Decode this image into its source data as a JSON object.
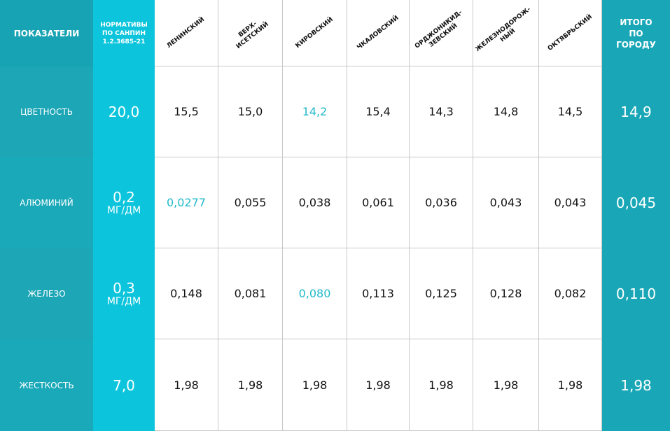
{
  "header": {
    "label": "ПОКАЗАТЕЛИ",
    "norm": [
      "НОРМАТИВЫ",
      "ПО САНПИН",
      "1.2.3685-21"
    ],
    "districts": [
      [
        "ЛЕНИНСКИЙ"
      ],
      [
        "ВЕРХ-",
        "ИСЕТСКИЙ"
      ],
      [
        "КИРОВСКИЙ"
      ],
      [
        "ЧКАЛОВСКИЙ"
      ],
      [
        "ОРДЖОНИКИД-",
        "ЗЕВСКИЙ"
      ],
      [
        "ЖЕЛЕЗНОДОРОЖ-",
        "НЫЙ"
      ],
      [
        "ОКТЯБРЬСКИЙ"
      ]
    ],
    "total": [
      "ИТОГО",
      "ПО",
      "ГОРОДУ"
    ]
  },
  "highlight_color": "#20b9c9",
  "rows": [
    {
      "name": "ЦВЕТНОСТЬ",
      "norm": {
        "value": "20,0"
      },
      "cells": [
        {
          "text": "15,5"
        },
        {
          "text": "15,0"
        },
        {
          "text": "14,2",
          "highlight": true
        },
        {
          "text": "15,4"
        },
        {
          "text": "14,3"
        },
        {
          "text": "14,8"
        },
        {
          "text": "14,5"
        }
      ],
      "total": "14,9"
    },
    {
      "name": "АЛЮМИНИЙ",
      "norm": {
        "value": "0,2",
        "unit": "МГ/ДМ"
      },
      "cells": [
        {
          "text": "0,0277",
          "highlight": true
        },
        {
          "text": "0,055"
        },
        {
          "text": "0,038"
        },
        {
          "text": "0,061"
        },
        {
          "text": "0,036"
        },
        {
          "text": "0,043"
        },
        {
          "text": "0,043"
        }
      ],
      "total": "0,045"
    },
    {
      "name": "ЖЕЛЕЗО",
      "norm": {
        "value": "0,3",
        "unit": "МГ/ДМ"
      },
      "cells": [
        {
          "text": "0,148"
        },
        {
          "text": "0,081"
        },
        {
          "text": "0,080",
          "highlight": true
        },
        {
          "text": "0,113"
        },
        {
          "text": "0,125"
        },
        {
          "text": "0,128"
        },
        {
          "text": "0,082"
        }
      ],
      "total": "0,110"
    },
    {
      "name": "ЖЕСТКОСТЬ",
      "norm": {
        "value": "7,0"
      },
      "cells": [
        {
          "text": "1,98"
        },
        {
          "text": "1,98"
        },
        {
          "text": "1,98"
        },
        {
          "text": "1,98"
        },
        {
          "text": "1,98"
        },
        {
          "text": "1,98"
        },
        {
          "text": "1,98"
        }
      ],
      "total": "1,98"
    }
  ]
}
